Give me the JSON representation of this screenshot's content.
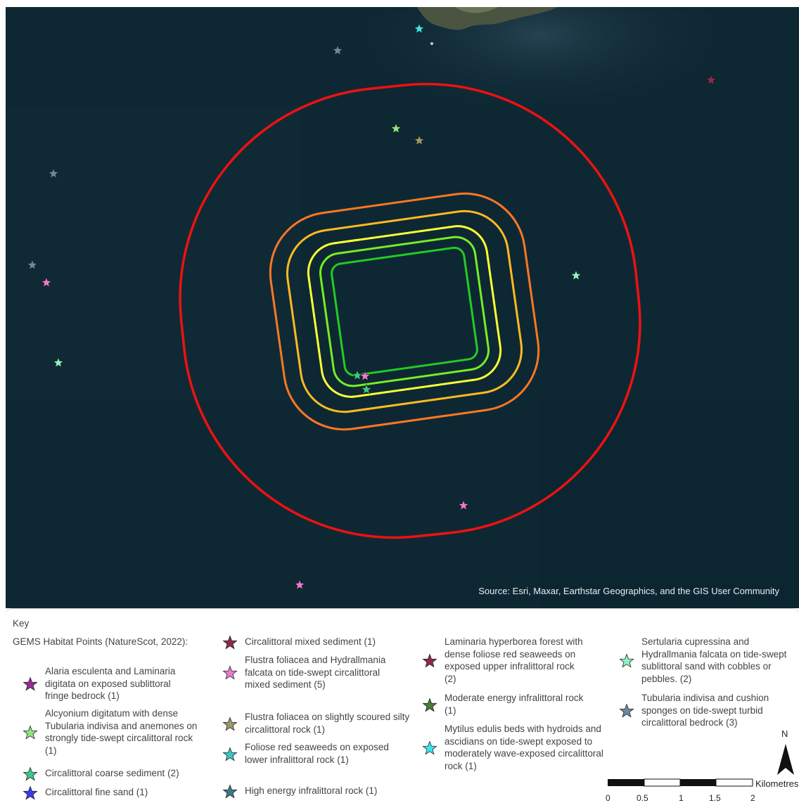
{
  "map": {
    "attribution": "Source: Esri, Maxar, Earthstar Geographics, and the GIS User Community",
    "colors": {
      "sea": "#0e2833",
      "land": "#4a5440",
      "buffers": [
        "#22cc22",
        "#77ee22",
        "#ffff33",
        "#ffbb22",
        "#ff7722",
        "#ee1111"
      ]
    }
  },
  "legend": {
    "title": "Key",
    "group_title": "GEMS Habitat Points (NatureScot, 2022):",
    "items": [
      {
        "label": "Alaria esculenta and Laminaria digitata on exposed sublittoral fringe bedrock (1)",
        "color": "#9a2a9a"
      },
      {
        "label": "Alcyonium digitatum with dense Tubularia indivisa and anemones on strongly tide-swept circalittoral rock (1)",
        "color": "#8ee87a"
      },
      {
        "label": "Circalittoral coarse sediment (2)",
        "color": "#3ec98a"
      },
      {
        "label": "Circalittoral fine sand (1)",
        "color": "#3a3aee"
      },
      {
        "label": "Circalittoral mixed sediment (1)",
        "color": "#8c2a4a"
      },
      {
        "label": "Flustra foliacea and Hydrallmania falcata on tide-swept circalittoral mixed sediment (5)",
        "color": "#ea7ad2"
      },
      {
        "label": "Flustra foliacea on slightly scoured silty circalittoral rock (1)",
        "color": "#9a9a6a"
      },
      {
        "label": "Foliose red seaweeds on exposed lower infralittoral rock (1)",
        "color": "#3ac6c6"
      },
      {
        "label": "High energy infralittoral rock (1)",
        "color": "#3a7a8a"
      },
      {
        "label": "Laminaria hyperborea forest with dense foliose red seaweeds on exposed upper infralittoral rock (2)",
        "color": "#8a2a4a"
      },
      {
        "label": "Moderate energy infralittoral rock (1)",
        "color": "#4a7a3a"
      },
      {
        "label": "Mytilus edulis beds with hydroids and ascidians on tide-swept exposed to moderately wave-exposed circalittoral rock (1)",
        "color": "#3ae6ee"
      },
      {
        "label": "Sertularia cupressina and Hydrallmania falcata on tide-swept sublittoral sand with cobbles or pebbles. (2)",
        "color": "#8ef2c6"
      },
      {
        "label": "Tubularia indivisa and cushion sponges on tide-swept turbid circalittoral bedrock (3)",
        "color": "#6a8aa6"
      }
    ],
    "north_label": "N",
    "scale": {
      "ticks": [
        "0",
        "0.5",
        "1",
        "1.5",
        "2"
      ],
      "unit": "Kilometres"
    }
  }
}
